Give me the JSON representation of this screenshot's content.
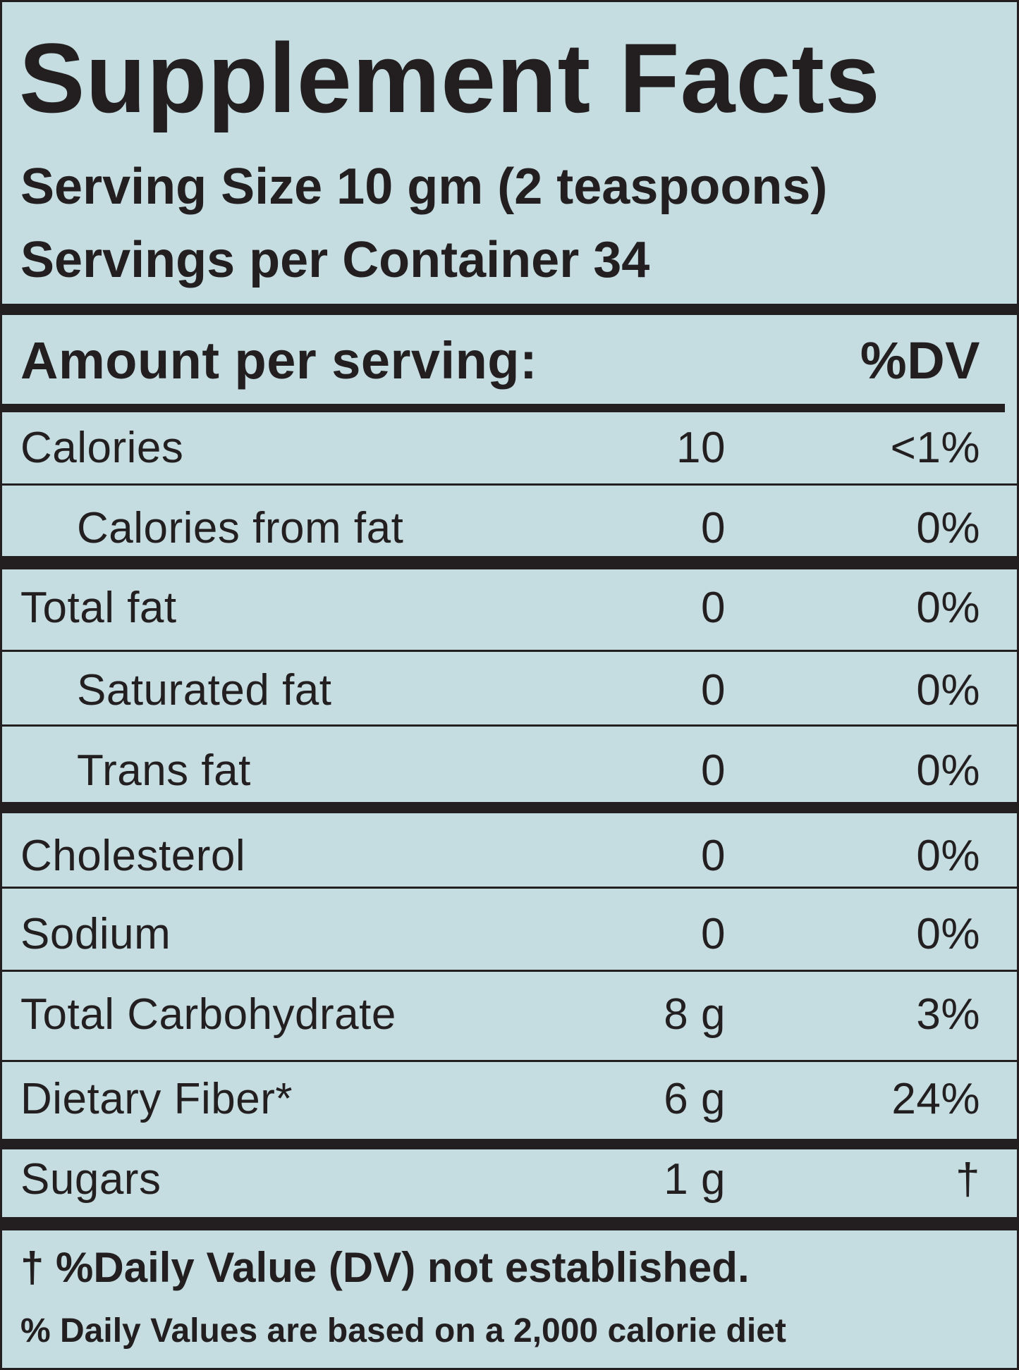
{
  "label": {
    "title": "Supplement Facts",
    "serving_size": "Serving Size 10 gm (2 teaspoons)",
    "servings_per_container": "Servings per Container 34",
    "header": {
      "amount_label": "Amount per serving:",
      "dv_label": "%DV"
    },
    "rows": [
      {
        "name": "Calories",
        "amount": "10",
        "dv": "<1%"
      },
      {
        "name": "Calories from fat",
        "amount": "0",
        "dv": "0%"
      },
      {
        "name": "Total fat",
        "amount": "0",
        "dv": "0%"
      },
      {
        "name": "Saturated fat",
        "amount": "0",
        "dv": "0%"
      },
      {
        "name": "Trans fat",
        "amount": "0",
        "dv": "0%"
      },
      {
        "name": "Cholesterol",
        "amount": "0",
        "dv": "0%"
      },
      {
        "name": "Sodium",
        "amount": "0",
        "dv": "0%"
      },
      {
        "name": "Total Carbohydrate",
        "amount": "8 g",
        "dv": "3%"
      },
      {
        "name": "Dietary Fiber*",
        "amount": "6 g",
        "dv": "24%"
      },
      {
        "name": "Sugars",
        "amount": "1 g",
        "dv": "†"
      }
    ],
    "footnote_dv": "† %Daily Value (DV) not established.",
    "footnote_diet": "% Daily Values are based on a 2,000 calorie diet"
  },
  "colors": {
    "background": "#c5dde0",
    "ink": "#231f20"
  }
}
